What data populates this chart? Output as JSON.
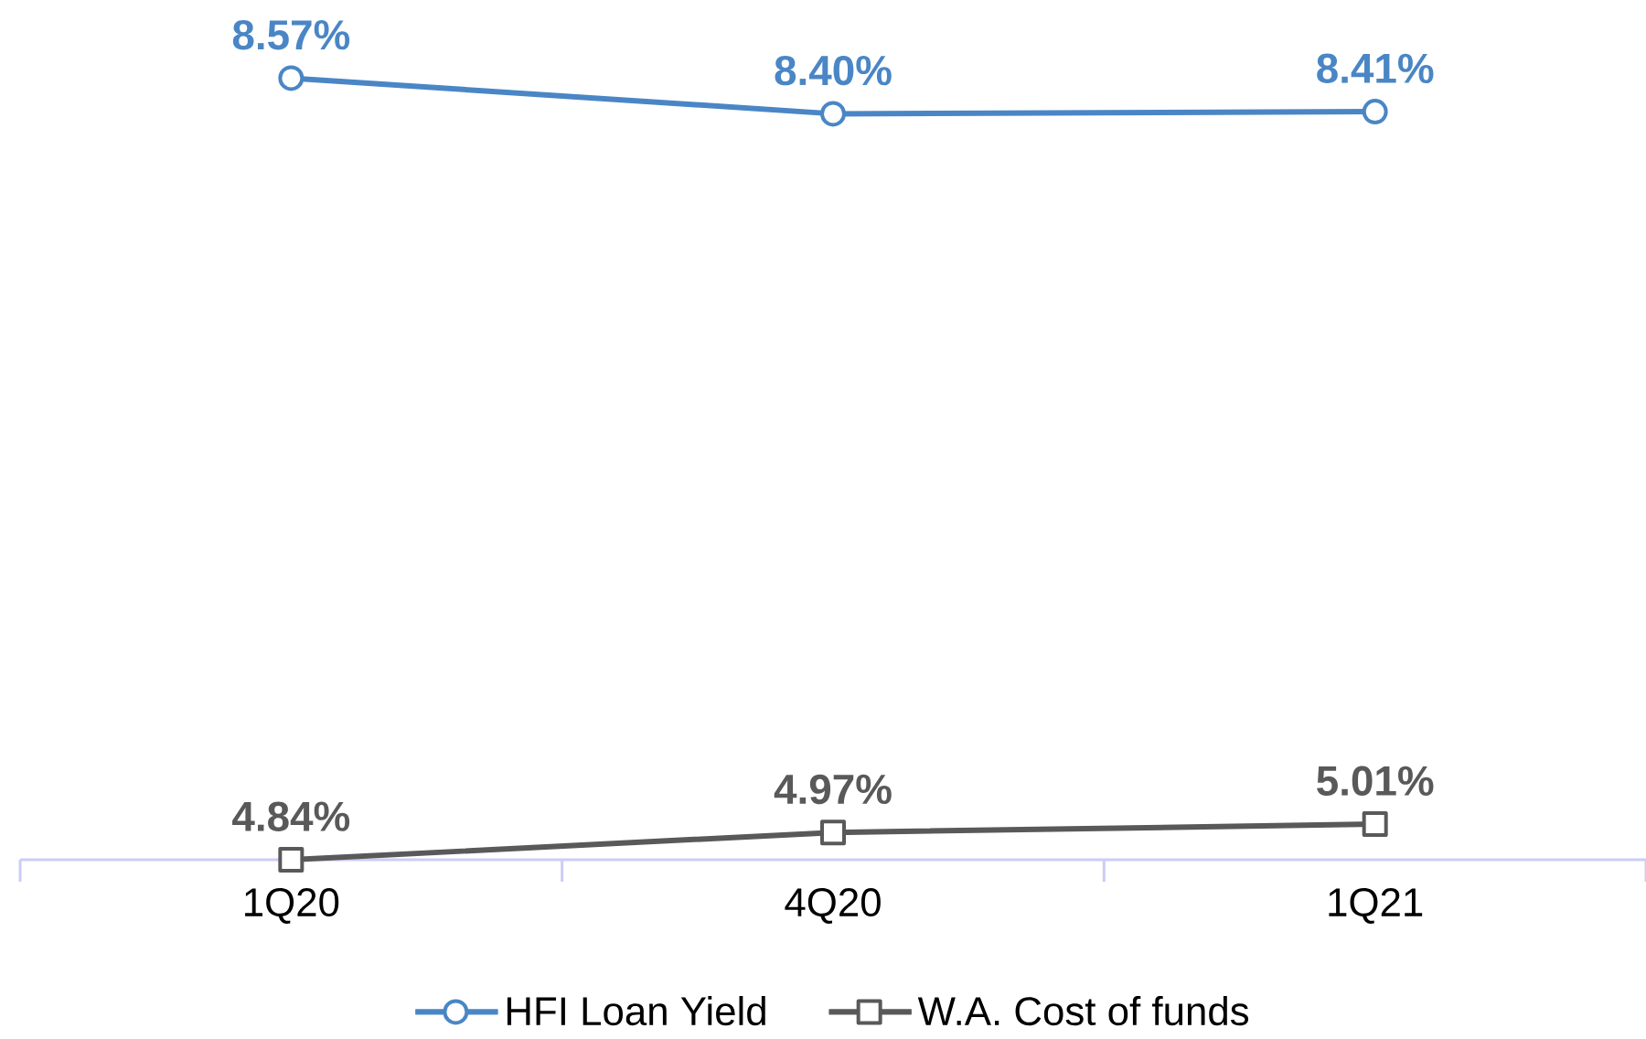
{
  "chart_data": {
    "type": "line",
    "categories": [
      "1Q20",
      "4Q20",
      "1Q21"
    ],
    "series": [
      {
        "name": "HFI Loan Yield",
        "color": "#4a86c5",
        "marker": "circle",
        "values": [
          8.57,
          8.4,
          8.41
        ],
        "value_labels": [
          "8.57%",
          "8.40%",
          "8.41%"
        ]
      },
      {
        "name": "W.A. Cost of funds",
        "color": "#595959",
        "marker": "square",
        "values": [
          4.84,
          4.97,
          5.01
        ],
        "value_labels": [
          "4.84%",
          "4.97%",
          "5.01%"
        ]
      }
    ],
    "legend": "bottom",
    "grid": false
  }
}
